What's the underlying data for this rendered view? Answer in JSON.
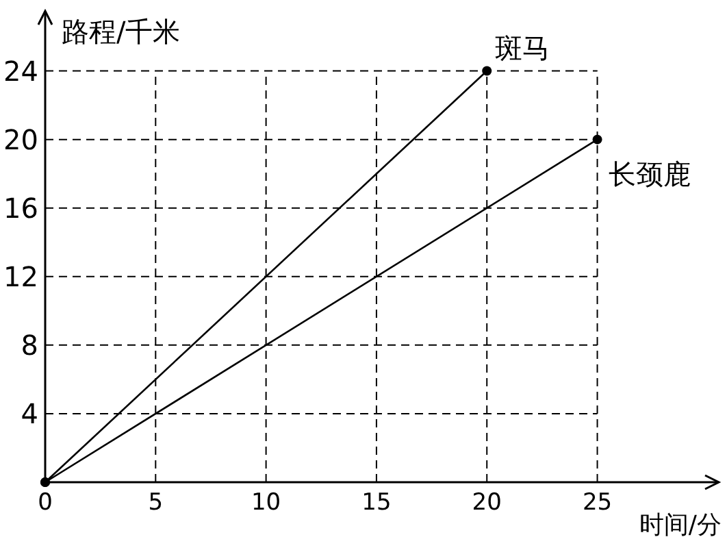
{
  "chart_data": {
    "type": "line",
    "xlabel": "时间/分",
    "ylabel": "路程/千米",
    "xlim": [
      0,
      30.5
    ],
    "ylim": [
      0,
      27.5
    ],
    "xticks": [
      0,
      5,
      10,
      15,
      20,
      25
    ],
    "yticks": [
      4,
      8,
      12,
      16,
      20,
      24
    ],
    "grid": true,
    "marker": "circle",
    "line_style": "solid",
    "series": [
      {
        "name": "斑马",
        "color": "#000000",
        "x": [
          0,
          20
        ],
        "values": [
          0,
          24
        ]
      },
      {
        "name": "长颈鹿",
        "color": "#000000",
        "x": [
          0,
          25
        ],
        "values": [
          0,
          20
        ]
      }
    ]
  }
}
